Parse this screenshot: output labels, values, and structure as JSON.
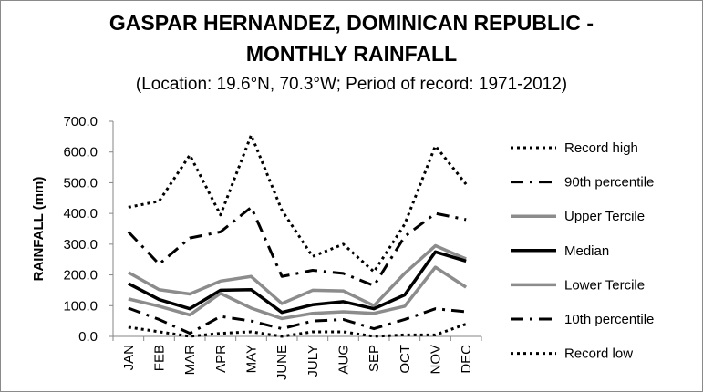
{
  "chart_data": {
    "type": "line",
    "title_line1": "GASPAR HERNANDEZ, DOMINICAN REPUBLIC -",
    "title_line2": "MONTHLY RAINFALL",
    "subtitle": "(Location: 19.6°N, 70.3°W; Period of record: 1971-2012)",
    "ylabel": "RAINFALL (mm)",
    "xlabel": "",
    "ylim": [
      0,
      700
    ],
    "yticks": [
      "0.0",
      "100.0",
      "200.0",
      "300.0",
      "400.0",
      "500.0",
      "600.0",
      "700.0"
    ],
    "ytick_values": [
      0,
      100,
      200,
      300,
      400,
      500,
      600,
      700
    ],
    "categories": [
      "JAN",
      "FEB",
      "MAR",
      "APR",
      "MAY",
      "JUNE",
      "JULY",
      "AUG",
      "SEP",
      "OCT",
      "NOV",
      "DEC"
    ],
    "grid": false,
    "legend_position": "right",
    "series": [
      {
        "name": "Record high",
        "style": "dotted",
        "color": "#000000",
        "values": [
          420,
          440,
          590,
          395,
          655,
          410,
          260,
          300,
          210,
          365,
          620,
          495
        ]
      },
      {
        "name": "90th percentile",
        "style": "dashdot",
        "color": "#000000",
        "values": [
          340,
          235,
          320,
          340,
          420,
          195,
          215,
          205,
          165,
          325,
          400,
          380
        ]
      },
      {
        "name": "Upper Tercile",
        "style": "solid",
        "color": "#8c8c8c",
        "values": [
          208,
          152,
          138,
          180,
          195,
          107,
          150,
          148,
          100,
          205,
          295,
          252
        ]
      },
      {
        "name": "Median",
        "style": "solid",
        "color": "#000000",
        "values": [
          172,
          120,
          90,
          150,
          152,
          78,
          103,
          113,
          90,
          135,
          275,
          245
        ]
      },
      {
        "name": "Lower Tercile",
        "style": "solid",
        "color": "#8c8c8c",
        "values": [
          122,
          98,
          70,
          140,
          92,
          58,
          75,
          80,
          75,
          98,
          225,
          160
        ]
      },
      {
        "name": "10th percentile",
        "style": "dashdot",
        "color": "#000000",
        "values": [
          92,
          55,
          10,
          65,
          50,
          25,
          50,
          55,
          25,
          55,
          90,
          80
        ]
      },
      {
        "name": "Record low",
        "style": "dotted",
        "color": "#000000",
        "values": [
          30,
          15,
          0,
          10,
          15,
          0,
          15,
          15,
          0,
          5,
          5,
          40
        ]
      }
    ]
  }
}
